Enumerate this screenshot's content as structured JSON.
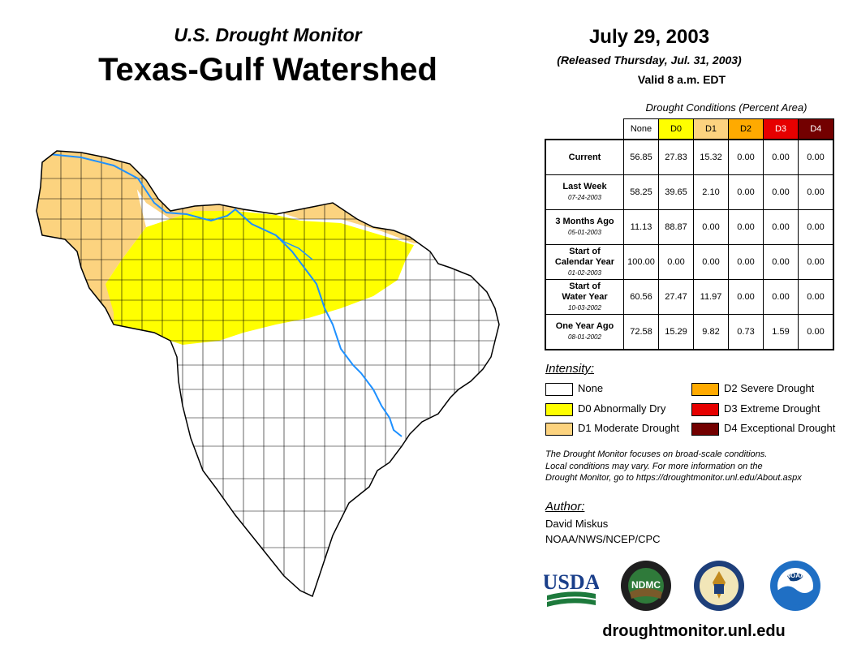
{
  "header": {
    "subtitle": "U.S. Drought Monitor",
    "title": "Texas-Gulf Watershed",
    "date": "July 29, 2003",
    "released": "(Released Thursday, Jul. 31, 2003)",
    "valid": "Valid 8 a.m. EDT"
  },
  "table": {
    "caption": "Drought Conditions (Percent Area)",
    "columns": [
      "None",
      "D0",
      "D1",
      "D2",
      "D3",
      "D4"
    ],
    "column_colors": [
      "#ffffff",
      "#ffff00",
      "#fcd37f",
      "#ffaa00",
      "#e60000",
      "#730000"
    ],
    "rows": [
      {
        "label_lines": [
          "Current"
        ],
        "date": "",
        "values": [
          "56.85",
          "27.83",
          "15.32",
          "0.00",
          "0.00",
          "0.00"
        ]
      },
      {
        "label_lines": [
          "Last Week"
        ],
        "date": "07-24-2003",
        "values": [
          "58.25",
          "39.65",
          "2.10",
          "0.00",
          "0.00",
          "0.00"
        ]
      },
      {
        "label_lines": [
          "3 Months Ago"
        ],
        "date": "05-01-2003",
        "values": [
          "11.13",
          "88.87",
          "0.00",
          "0.00",
          "0.00",
          "0.00"
        ]
      },
      {
        "label_lines": [
          "Start of",
          "Calendar Year"
        ],
        "date": "01-02-2003",
        "values": [
          "100.00",
          "0.00",
          "0.00",
          "0.00",
          "0.00",
          "0.00"
        ]
      },
      {
        "label_lines": [
          "Start of",
          "Water Year"
        ],
        "date": "10-03-2002",
        "values": [
          "60.56",
          "27.47",
          "11.97",
          "0.00",
          "0.00",
          "0.00"
        ]
      },
      {
        "label_lines": [
          "One Year Ago"
        ],
        "date": "08-01-2002",
        "values": [
          "72.58",
          "15.29",
          "9.82",
          "0.73",
          "1.59",
          "0.00"
        ]
      }
    ]
  },
  "legend": {
    "title": "Intensity:",
    "items": [
      {
        "label": "None",
        "color": "#ffffff"
      },
      {
        "label": "D0 Abnormally Dry",
        "color": "#ffff00"
      },
      {
        "label": "D1 Moderate Drought",
        "color": "#fcd37f"
      },
      {
        "label": "D2 Severe Drought",
        "color": "#ffaa00"
      },
      {
        "label": "D3 Extreme Drought",
        "color": "#e60000"
      },
      {
        "label": "D4 Exceptional Drought",
        "color": "#730000"
      }
    ]
  },
  "disclaimer": {
    "line1": "The Drought Monitor focuses on broad-scale conditions.",
    "line2": "Local conditions may vary. For more information on the",
    "line3": "Drought Monitor, go to https://droughtmonitor.unl.edu/About.aspx"
  },
  "author": {
    "title": "Author:",
    "name": "David Miskus",
    "org": "NOAA/NWS/NCEP/CPC"
  },
  "logos": {
    "usda": "USDA",
    "ndmc": "NDMC",
    "noaa": "NOAA"
  },
  "footer": {
    "url": "droughtmonitor.unl.edu"
  },
  "colors": {
    "river": "#1e90ff",
    "d0": "#ffff00",
    "d1": "#fcd37f"
  }
}
